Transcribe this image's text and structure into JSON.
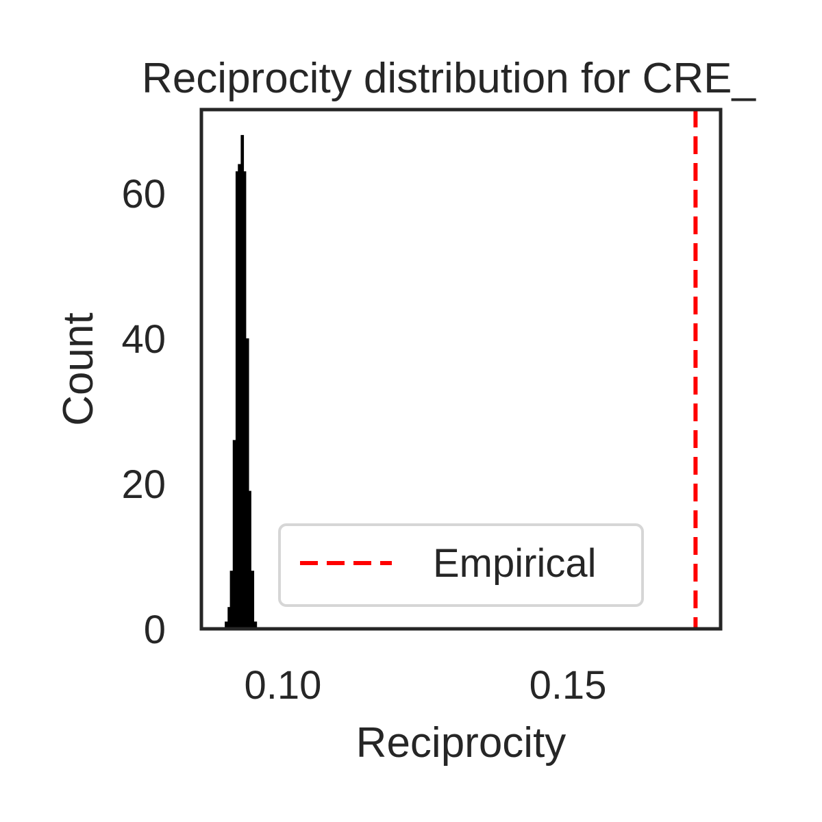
{
  "chart_data": {
    "type": "bar",
    "title": "Reciprocity distribution for CRE_",
    "xlabel": "Reciprocity",
    "ylabel": "Count",
    "xlim": [
      0.0857,
      0.1768
    ],
    "ylim": [
      0,
      71.5
    ],
    "xticks": [
      {
        "value": 0.1,
        "label": "0.10"
      },
      {
        "value": 0.15,
        "label": "0.15"
      }
    ],
    "yticks": [
      {
        "value": 0,
        "label": "0"
      },
      {
        "value": 20,
        "label": "20"
      },
      {
        "value": 40,
        "label": "40"
      },
      {
        "value": 60,
        "label": "60"
      }
    ],
    "histogram": {
      "bin_edges": [
        0.0898,
        0.0903,
        0.0907,
        0.0912,
        0.0917,
        0.0921,
        0.0926,
        0.0931,
        0.0935,
        0.094,
        0.0944,
        0.0949,
        0.0954
      ],
      "counts": [
        1,
        3,
        8,
        26,
        63,
        64,
        68,
        63,
        40,
        19,
        8,
        1
      ],
      "color": "#000000"
    },
    "reference_line": {
      "x": 0.1724,
      "label": "Empirical",
      "color": "#ff0000",
      "style": "dashed"
    },
    "legend": {
      "position": "lower-right",
      "entries": [
        "Empirical"
      ]
    },
    "grid": false
  }
}
